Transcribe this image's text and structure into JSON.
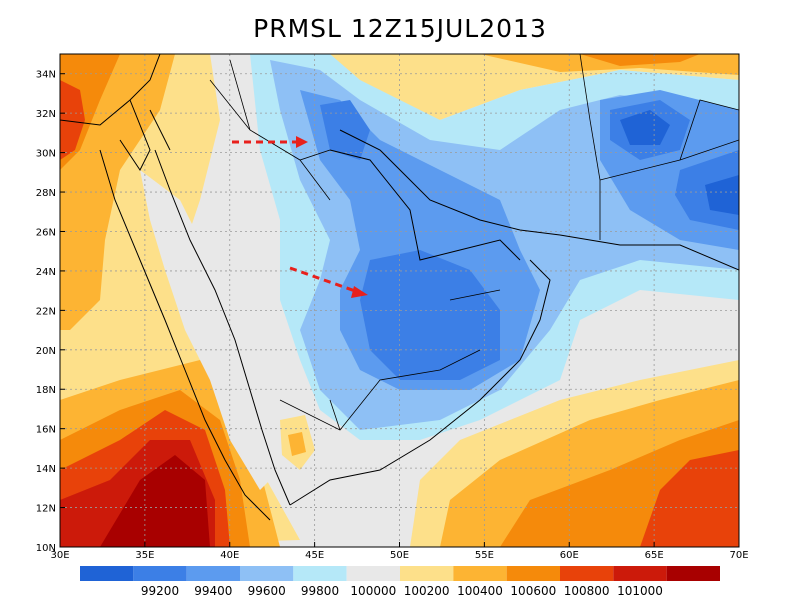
{
  "title": "PRMSL 12Z15JUL2013",
  "map": {
    "lon_range": [
      30,
      70
    ],
    "lat_range": [
      10,
      35
    ],
    "lon_ticks": [
      "30E",
      "35E",
      "40E",
      "45E",
      "50E",
      "55E",
      "60E",
      "65E",
      "70E"
    ],
    "lat_ticks": [
      "10N",
      "12N",
      "14N",
      "16N",
      "18N",
      "20N",
      "22N",
      "24N",
      "26N",
      "28N",
      "30N",
      "32N",
      "34N"
    ],
    "grid": true,
    "arrow_color": "#e8201c"
  },
  "colorbar": {
    "colors": [
      "#1f63d6",
      "#3c7fe6",
      "#5c9bef",
      "#8ec0f5",
      "#b5e8f8",
      "#e8e8e8",
      "#fde08a",
      "#fdb433",
      "#f58a0b",
      "#e8420a",
      "#cc1a0a",
      "#a80000"
    ],
    "labels": [
      "99200",
      "99400",
      "99600",
      "99800",
      "100000",
      "100200",
      "100400",
      "100600",
      "100800",
      "101000"
    ]
  }
}
